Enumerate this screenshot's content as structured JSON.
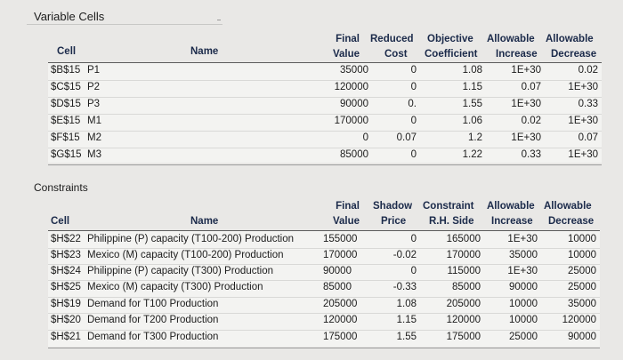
{
  "variable_cells": {
    "title": "Variable Cells",
    "headers": {
      "cell": "Cell",
      "name": "Name",
      "final": [
        "Final",
        "Value"
      ],
      "reduced": [
        "Reduced",
        "Cost"
      ],
      "objective": [
        "Objective",
        "Coefficient"
      ],
      "allow_inc": [
        "Allowable",
        "Increase"
      ],
      "allow_dec": [
        "Allowable",
        "Decrease"
      ]
    },
    "rows": [
      {
        "cell": "$B$15",
        "name": "P1",
        "final": "35000",
        "reduced": "0",
        "objective": "1.08",
        "inc": "1E+30",
        "dec": "0.02"
      },
      {
        "cell": "$C$15",
        "name": "P2",
        "final": "120000",
        "reduced": "0",
        "objective": "1.15",
        "inc": "0.07",
        "dec": "1E+30"
      },
      {
        "cell": "$D$15",
        "name": "P3",
        "final": "90000",
        "reduced": "0.",
        "objective": "1.55",
        "inc": "1E+30",
        "dec": "0.33"
      },
      {
        "cell": "$E$15",
        "name": "M1",
        "final": "170000",
        "reduced": "0",
        "objective": "1.06",
        "inc": "0.02",
        "dec": "1E+30"
      },
      {
        "cell": "$F$15",
        "name": "M2",
        "final": "0",
        "reduced": "0.07",
        "objective": "1.2",
        "inc": "1E+30",
        "dec": "0.07"
      },
      {
        "cell": "$G$15",
        "name": "M3",
        "final": "85000",
        "reduced": "0",
        "objective": "1.22",
        "inc": "0.33",
        "dec": "1E+30"
      }
    ]
  },
  "constraints": {
    "title": "Constraints",
    "headers": {
      "cell": "Cell",
      "name": "Name",
      "final": [
        "Final",
        "Value"
      ],
      "shadow": [
        "Shadow",
        "Price"
      ],
      "constraint": [
        "Constraint",
        "R.H. Side"
      ],
      "allow_inc": [
        "Allowable",
        "Increase"
      ],
      "allow_dec": [
        "Allowable",
        "Decrease"
      ]
    },
    "rows": [
      {
        "cell": "$H$22",
        "name": "Philippine (P) capacity (T100-200) Production",
        "final": "155000",
        "shadow": "0",
        "rhs": "165000",
        "inc": "1E+30",
        "dec": "10000"
      },
      {
        "cell": "$H$23",
        "name": "Mexico (M) capacity (T100-200) Production",
        "final": "170000",
        "shadow": "-0.02",
        "rhs": "170000",
        "inc": "35000",
        "dec": "10000"
      },
      {
        "cell": "$H$24",
        "name": "Philippine (P) capacity (T300) Production",
        "final": "90000",
        "shadow": "0",
        "rhs": "115000",
        "inc": "1E+30",
        "dec": "25000"
      },
      {
        "cell": "$H$25",
        "name": "Mexico (M) capacity (T300) Production",
        "final": "85000",
        "shadow": "-0.33",
        "rhs": "85000",
        "inc": "90000",
        "dec": "25000"
      },
      {
        "cell": "$H$19",
        "name": "Demand for T100 Production",
        "final": "205000",
        "shadow": "1.08",
        "rhs": "205000",
        "inc": "10000",
        "dec": "35000"
      },
      {
        "cell": "$H$20",
        "name": "Demand for T200 Production",
        "final": "120000",
        "shadow": "1.15",
        "rhs": "120000",
        "inc": "10000",
        "dec": "120000"
      },
      {
        "cell": "$H$21",
        "name": "Demand for T300 Production",
        "final": "175000",
        "shadow": "1.55",
        "rhs": "175000",
        "inc": "25000",
        "dec": "90000"
      }
    ]
  }
}
